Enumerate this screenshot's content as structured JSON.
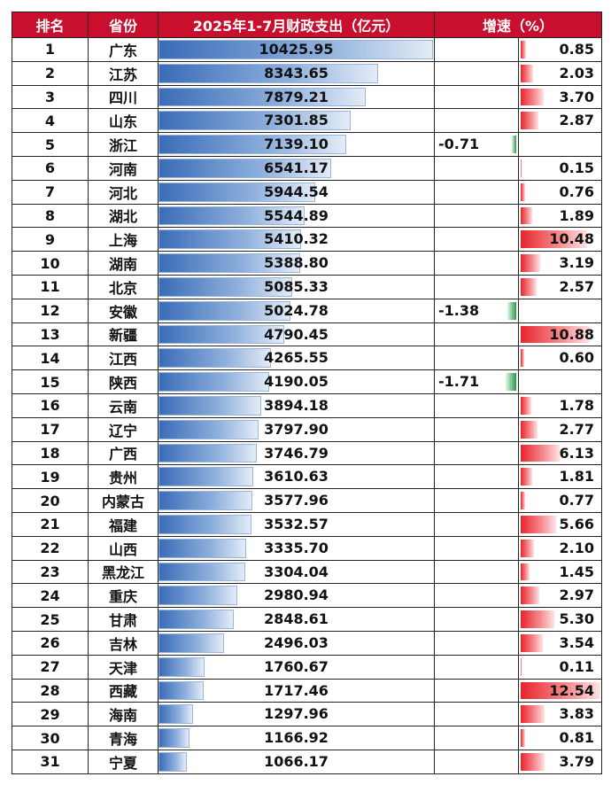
{
  "chart_data": {
    "type": "table",
    "headers": {
      "rank": "排名",
      "province": "省份",
      "expenditure": "2025年1-7月财政支出（亿元）",
      "growth": "增速（%）"
    },
    "colors": {
      "header_bg": "#c8102e",
      "expenditure_bar": "#3a6cb8",
      "growth_pos": "#e8242c",
      "growth_neg": "#2e9a4a"
    },
    "rows": [
      {
        "rank": "1",
        "province": "广东",
        "expenditure": 10425.95,
        "expenditure_text": "10425.95",
        "growth": 0.85,
        "growth_text": "0.85"
      },
      {
        "rank": "2",
        "province": "江苏",
        "expenditure": 8343.65,
        "expenditure_text": "8343.65",
        "growth": 2.03,
        "growth_text": "2.03"
      },
      {
        "rank": "3",
        "province": "四川",
        "expenditure": 7879.21,
        "expenditure_text": "7879.21",
        "growth": 3.7,
        "growth_text": "3.70"
      },
      {
        "rank": "4",
        "province": "山东",
        "expenditure": 7301.85,
        "expenditure_text": "7301.85",
        "growth": 2.87,
        "growth_text": "2.87"
      },
      {
        "rank": "5",
        "province": "浙江",
        "expenditure": 7139.1,
        "expenditure_text": "7139.10",
        "growth": -0.71,
        "growth_text": "-0.71"
      },
      {
        "rank": "6",
        "province": "河南",
        "expenditure": 6541.17,
        "expenditure_text": "6541.17",
        "growth": 0.15,
        "growth_text": "0.15"
      },
      {
        "rank": "7",
        "province": "河北",
        "expenditure": 5944.54,
        "expenditure_text": "5944.54",
        "growth": 0.76,
        "growth_text": "0.76"
      },
      {
        "rank": "8",
        "province": "湖北",
        "expenditure": 5544.89,
        "expenditure_text": "5544.89",
        "growth": 1.89,
        "growth_text": "1.89"
      },
      {
        "rank": "9",
        "province": "上海",
        "expenditure": 5410.32,
        "expenditure_text": "5410.32",
        "growth": 10.48,
        "growth_text": "10.48"
      },
      {
        "rank": "10",
        "province": "湖南",
        "expenditure": 5388.8,
        "expenditure_text": "5388.80",
        "growth": 3.19,
        "growth_text": "3.19"
      },
      {
        "rank": "11",
        "province": "北京",
        "expenditure": 5085.33,
        "expenditure_text": "5085.33",
        "growth": 2.57,
        "growth_text": "2.57"
      },
      {
        "rank": "12",
        "province": "安徽",
        "expenditure": 5024.78,
        "expenditure_text": "5024.78",
        "growth": -1.38,
        "growth_text": "-1.38"
      },
      {
        "rank": "13",
        "province": "新疆",
        "expenditure": 4790.45,
        "expenditure_text": "4790.45",
        "growth": 10.88,
        "growth_text": "10.88"
      },
      {
        "rank": "14",
        "province": "江西",
        "expenditure": 4265.55,
        "expenditure_text": "4265.55",
        "growth": 0.6,
        "growth_text": "0.60"
      },
      {
        "rank": "15",
        "province": "陕西",
        "expenditure": 4190.05,
        "expenditure_text": "4190.05",
        "growth": -1.71,
        "growth_text": "-1.71"
      },
      {
        "rank": "16",
        "province": "云南",
        "expenditure": 3894.18,
        "expenditure_text": "3894.18",
        "growth": 1.78,
        "growth_text": "1.78"
      },
      {
        "rank": "17",
        "province": "辽宁",
        "expenditure": 3797.9,
        "expenditure_text": "3797.90",
        "growth": 2.77,
        "growth_text": "2.77"
      },
      {
        "rank": "18",
        "province": "广西",
        "expenditure": 3746.79,
        "expenditure_text": "3746.79",
        "growth": 6.13,
        "growth_text": "6.13"
      },
      {
        "rank": "19",
        "province": "贵州",
        "expenditure": 3610.63,
        "expenditure_text": "3610.63",
        "growth": 1.81,
        "growth_text": "1.81"
      },
      {
        "rank": "20",
        "province": "内蒙古",
        "expenditure": 3577.96,
        "expenditure_text": "3577.96",
        "growth": 0.77,
        "growth_text": "0.77"
      },
      {
        "rank": "21",
        "province": "福建",
        "expenditure": 3532.57,
        "expenditure_text": "3532.57",
        "growth": 5.66,
        "growth_text": "5.66"
      },
      {
        "rank": "22",
        "province": "山西",
        "expenditure": 3335.7,
        "expenditure_text": "3335.70",
        "growth": 2.1,
        "growth_text": "2.10"
      },
      {
        "rank": "23",
        "province": "黑龙江",
        "expenditure": 3304.04,
        "expenditure_text": "3304.04",
        "growth": 1.45,
        "growth_text": "1.45"
      },
      {
        "rank": "24",
        "province": "重庆",
        "expenditure": 2980.94,
        "expenditure_text": "2980.94",
        "growth": 2.97,
        "growth_text": "2.97"
      },
      {
        "rank": "25",
        "province": "甘肃",
        "expenditure": 2848.61,
        "expenditure_text": "2848.61",
        "growth": 5.3,
        "growth_text": "5.30"
      },
      {
        "rank": "26",
        "province": "吉林",
        "expenditure": 2496.03,
        "expenditure_text": "2496.03",
        "growth": 3.54,
        "growth_text": "3.54"
      },
      {
        "rank": "27",
        "province": "天津",
        "expenditure": 1760.67,
        "expenditure_text": "1760.67",
        "growth": 0.11,
        "growth_text": "0.11"
      },
      {
        "rank": "28",
        "province": "西藏",
        "expenditure": 1717.46,
        "expenditure_text": "1717.46",
        "growth": 12.54,
        "growth_text": "12.54"
      },
      {
        "rank": "29",
        "province": "海南",
        "expenditure": 1297.96,
        "expenditure_text": "1297.96",
        "growth": 3.83,
        "growth_text": "3.83"
      },
      {
        "rank": "30",
        "province": "青海",
        "expenditure": 1166.92,
        "expenditure_text": "1166.92",
        "growth": 0.81,
        "growth_text": "0.81"
      },
      {
        "rank": "31",
        "province": "宁夏",
        "expenditure": 1066.17,
        "expenditure_text": "1066.17",
        "growth": 3.79,
        "growth_text": "3.79"
      }
    ]
  }
}
